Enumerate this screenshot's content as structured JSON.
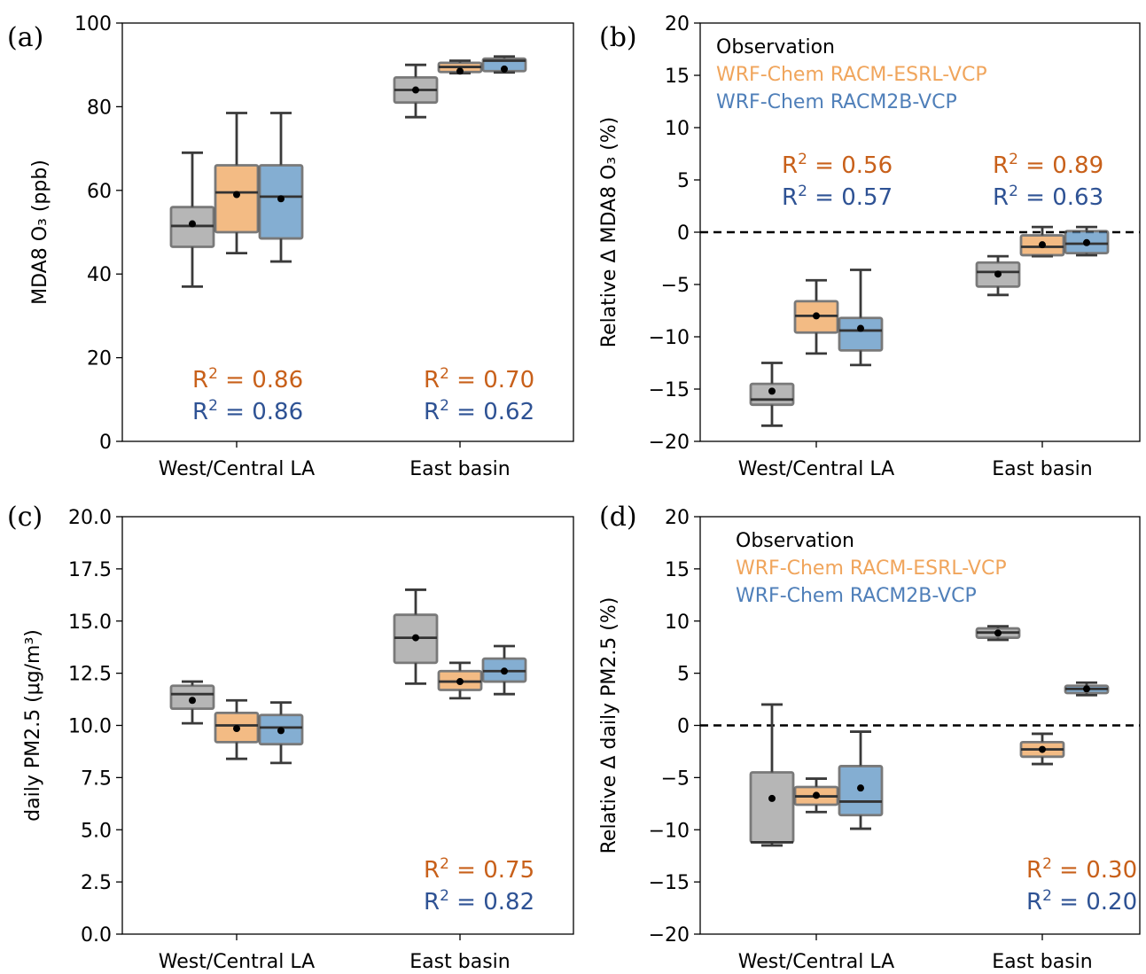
{
  "colors": {
    "observation": "#9e9e9e",
    "esrl": "#f0a55c",
    "racm2b": "#5b93c3",
    "r2_orange": "#c8601a",
    "r2_blue": "#2e5294",
    "legend_orange": "#f0a55c",
    "legend_blue": "#4f7fb9"
  },
  "chart_data": [
    {
      "panel": "(a)",
      "type": "box",
      "ylabel": "MDA8 O₃ (ppb)",
      "ylim": [
        0,
        100
      ],
      "yticks": [
        "0",
        "20",
        "40",
        "60",
        "80",
        "100"
      ],
      "ytick_values": [
        0,
        20,
        40,
        60,
        80,
        100
      ],
      "categories": [
        "West/Central LA",
        "East basin"
      ],
      "series": [
        {
          "name": "Observation",
          "boxes": [
            {
              "min": 37,
              "q1": 46.5,
              "median": 51.5,
              "q3": 56,
              "max": 69,
              "mean": 52
            },
            {
              "min": 77.5,
              "q1": 81,
              "median": 84,
              "q3": 87,
              "max": 90,
              "mean": 84
            }
          ]
        },
        {
          "name": "WRF-Chem RACM-ESRL-VCP",
          "boxes": [
            {
              "min": 45,
              "q1": 50,
              "median": 59.5,
              "q3": 66,
              "max": 78.5,
              "mean": 59
            },
            {
              "min": 88,
              "q1": 88.3,
              "median": 89.5,
              "q3": 90.5,
              "max": 91,
              "mean": 88.5
            }
          ]
        },
        {
          "name": "WRF-Chem RACM2B-VCP",
          "boxes": [
            {
              "min": 43,
              "q1": 48.5,
              "median": 58.5,
              "q3": 66,
              "max": 78.5,
              "mean": 58
            },
            {
              "min": 88.2,
              "q1": 88.5,
              "median": 91,
              "q3": 91.5,
              "max": 92,
              "mean": 89
            }
          ]
        }
      ],
      "annotations": [
        {
          "text_pre": "R",
          "sup": "2",
          "text_post": " = 0.86",
          "color": "orange",
          "cat": 0,
          "row": 0
        },
        {
          "text_pre": "R",
          "sup": "2",
          "text_post": " = 0.86",
          "color": "blue",
          "cat": 0,
          "row": 1
        },
        {
          "text_pre": "R",
          "sup": "2",
          "text_post": " = 0.70",
          "color": "orange",
          "cat": 1,
          "row": 0
        },
        {
          "text_pre": "R",
          "sup": "2",
          "text_post": " = 0.62",
          "color": "blue",
          "cat": 1,
          "row": 1
        }
      ],
      "legend": null,
      "zero_line": false
    },
    {
      "panel": "(b)",
      "type": "box",
      "ylabel": "Relative Δ MDA8 O₃ (%)",
      "ylim": [
        -20,
        20
      ],
      "yticks": [
        "−20",
        "−15",
        "−10",
        "−5",
        "0",
        "5",
        "10",
        "15",
        "20"
      ],
      "ytick_values": [
        -20,
        -15,
        -10,
        -5,
        0,
        5,
        10,
        15,
        20
      ],
      "categories": [
        "West/Central LA",
        "East basin"
      ],
      "series": [
        {
          "name": "Observation",
          "boxes": [
            {
              "min": -18.5,
              "q1": -16.5,
              "median": -16,
              "q3": -14.5,
              "max": -12.5,
              "mean": -15.2
            },
            {
              "min": -6,
              "q1": -5.2,
              "median": -3.8,
              "q3": -2.9,
              "max": -2.3,
              "mean": -4
            }
          ]
        },
        {
          "name": "WRF-Chem RACM-ESRL-VCP",
          "boxes": [
            {
              "min": -11.6,
              "q1": -9.6,
              "median": -8,
              "q3": -6.6,
              "max": -4.6,
              "mean": -8
            },
            {
              "min": -2.3,
              "q1": -2.2,
              "median": -1.4,
              "q3": -0.3,
              "max": 0.5,
              "mean": -1.2
            }
          ]
        },
        {
          "name": "WRF-Chem RACM2B-VCP",
          "boxes": [
            {
              "min": -12.7,
              "q1": -11.3,
              "median": -9.4,
              "q3": -8.2,
              "max": -3.6,
              "mean": -9.2
            },
            {
              "min": -2.2,
              "q1": -2,
              "median": -1.1,
              "q3": 0.1,
              "max": 0.5,
              "mean": -1
            }
          ]
        }
      ],
      "annotations": [
        {
          "text_pre": "R",
          "sup": "2",
          "text_post": " = 0.56",
          "color": "orange",
          "cat": 0,
          "row": 0
        },
        {
          "text_pre": "R",
          "sup": "2",
          "text_post": " = 0.57",
          "color": "blue",
          "cat": 0,
          "row": 1
        },
        {
          "text_pre": "R",
          "sup": "2",
          "text_post": " = 0.89",
          "color": "orange",
          "cat": 1,
          "row": 0
        },
        {
          "text_pre": "R",
          "sup": "2",
          "text_post": " = 0.63",
          "color": "blue",
          "cat": 1,
          "row": 1
        }
      ],
      "legend": [
        "Observation",
        "WRF-Chem RACM-ESRL-VCP",
        "WRF-Chem RACM2B-VCP"
      ],
      "zero_line": true
    },
    {
      "panel": "(c)",
      "type": "box",
      "ylabel": "daily PM2.5 (μg/m³)",
      "ylim": [
        0,
        20
      ],
      "yticks": [
        "0.0",
        "2.5",
        "5.0",
        "7.5",
        "10.0",
        "12.5",
        "15.0",
        "17.5",
        "20.0"
      ],
      "ytick_values": [
        0,
        2.5,
        5,
        7.5,
        10,
        12.5,
        15,
        17.5,
        20
      ],
      "categories": [
        "West/Central LA",
        "East basin"
      ],
      "series": [
        {
          "name": "Observation",
          "boxes": [
            {
              "min": 10.1,
              "q1": 10.8,
              "median": 11.5,
              "q3": 11.9,
              "max": 12.1,
              "mean": 11.2
            },
            {
              "min": 12,
              "q1": 13,
              "median": 14.2,
              "q3": 15.3,
              "max": 16.5,
              "mean": 14.2
            }
          ]
        },
        {
          "name": "WRF-Chem RACM-ESRL-VCP",
          "boxes": [
            {
              "min": 8.4,
              "q1": 9.2,
              "median": 10,
              "q3": 10.6,
              "max": 11.2,
              "mean": 9.85
            },
            {
              "min": 11.3,
              "q1": 11.7,
              "median": 12.1,
              "q3": 12.6,
              "max": 13,
              "mean": 12.1
            }
          ]
        },
        {
          "name": "WRF-Chem RACM2B-VCP",
          "boxes": [
            {
              "min": 8.2,
              "q1": 9.1,
              "median": 9.9,
              "q3": 10.5,
              "max": 11.1,
              "mean": 9.75
            },
            {
              "min": 11.5,
              "q1": 12.1,
              "median": 12.6,
              "q3": 13.2,
              "max": 13.8,
              "mean": 12.6
            }
          ]
        }
      ],
      "annotations": [
        {
          "text_pre": "R",
          "sup": "2",
          "text_post": " = 0.75",
          "color": "orange",
          "cat": 1,
          "row": 0
        },
        {
          "text_pre": "R",
          "sup": "2",
          "text_post": " = 0.82",
          "color": "blue",
          "cat": 1,
          "row": 1
        }
      ],
      "legend": null,
      "zero_line": false
    },
    {
      "panel": "(d)",
      "type": "box",
      "ylabel": "Relative Δ daily PM2.5 (%)",
      "ylim": [
        -20,
        20
      ],
      "yticks": [
        "−20",
        "−15",
        "−10",
        "−5",
        "0",
        "5",
        "10",
        "15",
        "20"
      ],
      "ytick_values": [
        -20,
        -15,
        -10,
        -5,
        0,
        5,
        10,
        15,
        20
      ],
      "categories": [
        "West/Central LA",
        "East basin"
      ],
      "series": [
        {
          "name": "Observation",
          "boxes": [
            {
              "min": -11.5,
              "q1": -11.2,
              "median": -11.2,
              "q3": -4.5,
              "max": 2,
              "mean": -7
            },
            {
              "min": 8.2,
              "q1": 8.4,
              "median": 8.9,
              "q3": 9.3,
              "max": 9.5,
              "mean": 8.85
            }
          ]
        },
        {
          "name": "WRF-Chem RACM-ESRL-VCP",
          "boxes": [
            {
              "min": -8.3,
              "q1": -7.6,
              "median": -6.8,
              "q3": -5.9,
              "max": -5.1,
              "mean": -6.7
            },
            {
              "min": -3.7,
              "q1": -3,
              "median": -2.3,
              "q3": -1.6,
              "max": -0.8,
              "mean": -2.3
            }
          ]
        },
        {
          "name": "WRF-Chem RACM2B-VCP",
          "boxes": [
            {
              "min": -9.9,
              "q1": -8.6,
              "median": -7.3,
              "q3": -3.9,
              "max": -0.6,
              "mean": -6
            },
            {
              "min": 2.9,
              "q1": 3.1,
              "median": 3.5,
              "q3": 3.8,
              "max": 4.1,
              "mean": 3.5
            }
          ]
        }
      ],
      "annotations": [
        {
          "text_pre": "R",
          "sup": "2",
          "text_post": " = 0.30",
          "color": "orange",
          "cat": 1,
          "row": 0
        },
        {
          "text_pre": "R",
          "sup": "2",
          "text_post": " = 0.20",
          "color": "blue",
          "cat": 1,
          "row": 1
        }
      ],
      "legend": [
        "Observation",
        "WRF-Chem RACM-ESRL-VCP",
        "WRF-Chem RACM2B-VCP"
      ],
      "zero_line": true
    }
  ]
}
